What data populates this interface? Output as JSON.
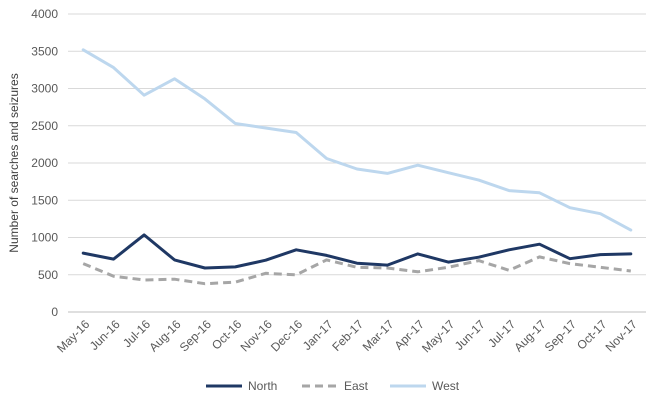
{
  "chart_data": {
    "type": "line",
    "title": "",
    "xlabel": "",
    "ylabel": "Number of searches and seizures",
    "ylim": [
      0,
      4000
    ],
    "yticks": [
      0,
      500,
      1000,
      1500,
      2000,
      2500,
      3000,
      3500,
      4000
    ],
    "grid": "horizontal",
    "legend_position": "bottom",
    "categories": [
      "May-16",
      "Jun-16",
      "Jul-16",
      "Aug-16",
      "Sep-16",
      "Oct-16",
      "Nov-16",
      "Dec-16",
      "Jan-17",
      "Feb-17",
      "Mar-17",
      "Apr-17",
      "May-17",
      "Jun-17",
      "Jul-17",
      "Aug-17",
      "Sep-17",
      "Oct-17",
      "Nov-17"
    ],
    "series": [
      {
        "name": "North",
        "color": "#1f3864",
        "style": "solid",
        "values": [
          790,
          710,
          1035,
          700,
          590,
          605,
          695,
          835,
          760,
          655,
          630,
          780,
          670,
          735,
          835,
          910,
          715,
          770,
          780
        ]
      },
      {
        "name": "East",
        "color": "#a6a6a6",
        "style": "dashed",
        "values": [
          650,
          480,
          430,
          440,
          380,
          400,
          520,
          500,
          700,
          600,
          590,
          540,
          600,
          690,
          560,
          740,
          650,
          600,
          550
        ]
      },
      {
        "name": "West",
        "color": "#bdd7ee",
        "style": "solid",
        "values": [
          3520,
          3280,
          2910,
          3130,
          2860,
          2530,
          2470,
          2410,
          2060,
          1920,
          1860,
          1970,
          1870,
          1770,
          1630,
          1600,
          1400,
          1320,
          1100
        ]
      }
    ]
  }
}
